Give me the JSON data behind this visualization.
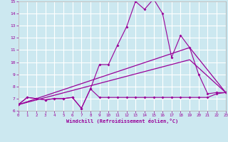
{
  "xlabel": "Windchill (Refroidissement éolien,°C)",
  "bg_color": "#cce8f0",
  "line_color": "#990099",
  "grid_color": "#ffffff",
  "xlim": [
    0,
    23
  ],
  "ylim": [
    6,
    15
  ],
  "xticks": [
    0,
    1,
    2,
    3,
    4,
    5,
    6,
    7,
    8,
    9,
    10,
    11,
    12,
    13,
    14,
    15,
    16,
    17,
    18,
    19,
    20,
    21,
    22,
    23
  ],
  "yticks": [
    6,
    7,
    8,
    9,
    10,
    11,
    12,
    13,
    14,
    15
  ],
  "line_peak_x": [
    0,
    1,
    2,
    3,
    4,
    5,
    6,
    7,
    8,
    9,
    10,
    11,
    12,
    13,
    14,
    15,
    16,
    17,
    18,
    19,
    20,
    21,
    22,
    23
  ],
  "line_peak_y": [
    6.5,
    7.1,
    7.0,
    6.9,
    7.0,
    7.0,
    7.1,
    6.2,
    7.8,
    9.8,
    9.8,
    11.4,
    12.9,
    15.0,
    14.35,
    15.2,
    14.0,
    10.4,
    12.2,
    11.2,
    9.0,
    7.4,
    7.5,
    7.5
  ],
  "line_flat_x": [
    0,
    1,
    2,
    3,
    4,
    5,
    6,
    7,
    8,
    9,
    10,
    11,
    12,
    13,
    14,
    15,
    16,
    17,
    18,
    19,
    20,
    21,
    22,
    23
  ],
  "line_flat_y": [
    6.5,
    7.1,
    7.0,
    6.9,
    7.0,
    7.0,
    7.1,
    6.2,
    7.8,
    7.1,
    7.1,
    7.1,
    7.1,
    7.1,
    7.1,
    7.1,
    7.1,
    7.1,
    7.1,
    7.1,
    7.1,
    7.1,
    7.4,
    7.5
  ],
  "line_trend1_x": [
    0,
    19,
    23
  ],
  "line_trend1_y": [
    6.5,
    11.2,
    7.5
  ],
  "line_trend2_x": [
    0,
    19,
    23
  ],
  "line_trend2_y": [
    6.5,
    10.2,
    7.5
  ]
}
